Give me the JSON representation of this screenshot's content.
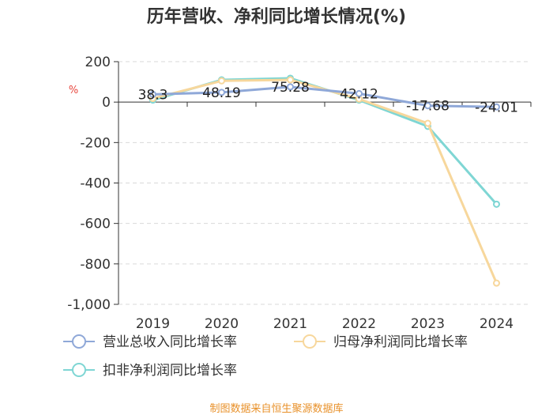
{
  "chart_data": {
    "type": "line",
    "title": "历年营收、净利同比增长情况(%)",
    "unit_label": "%",
    "categories": [
      "2019",
      "2020",
      "2021",
      "2022",
      "2023",
      "2024"
    ],
    "ylim": [
      -1000,
      200
    ],
    "yticks": [
      200,
      0,
      -200,
      -400,
      -600,
      -800,
      -1000
    ],
    "ytick_labels": [
      "200",
      "0",
      "-200",
      "-400",
      "-600",
      "-800",
      "-1,000"
    ],
    "grid": true,
    "legend_position": "bottom",
    "series": [
      {
        "name": "营业总收入同比增长率",
        "color": "#8fa8d8",
        "values": [
          38.3,
          48.19,
          75.28,
          42.12,
          -17.68,
          -24.01
        ],
        "labels": [
          "38.3",
          "48.19",
          "75.28",
          "42.12",
          "-17.68",
          "-24.01"
        ]
      },
      {
        "name": "归母净利润同比增长率",
        "color": "#f7d79c",
        "values": [
          18,
          105,
          110,
          15,
          -105,
          -895
        ]
      },
      {
        "name": "扣非净利润同比增长率",
        "color": "#7fd6d4",
        "values": [
          10,
          110,
          118,
          10,
          -120,
          -505
        ]
      }
    ]
  },
  "footer": {
    "source": "制图数据来自恒生聚源数据库"
  }
}
